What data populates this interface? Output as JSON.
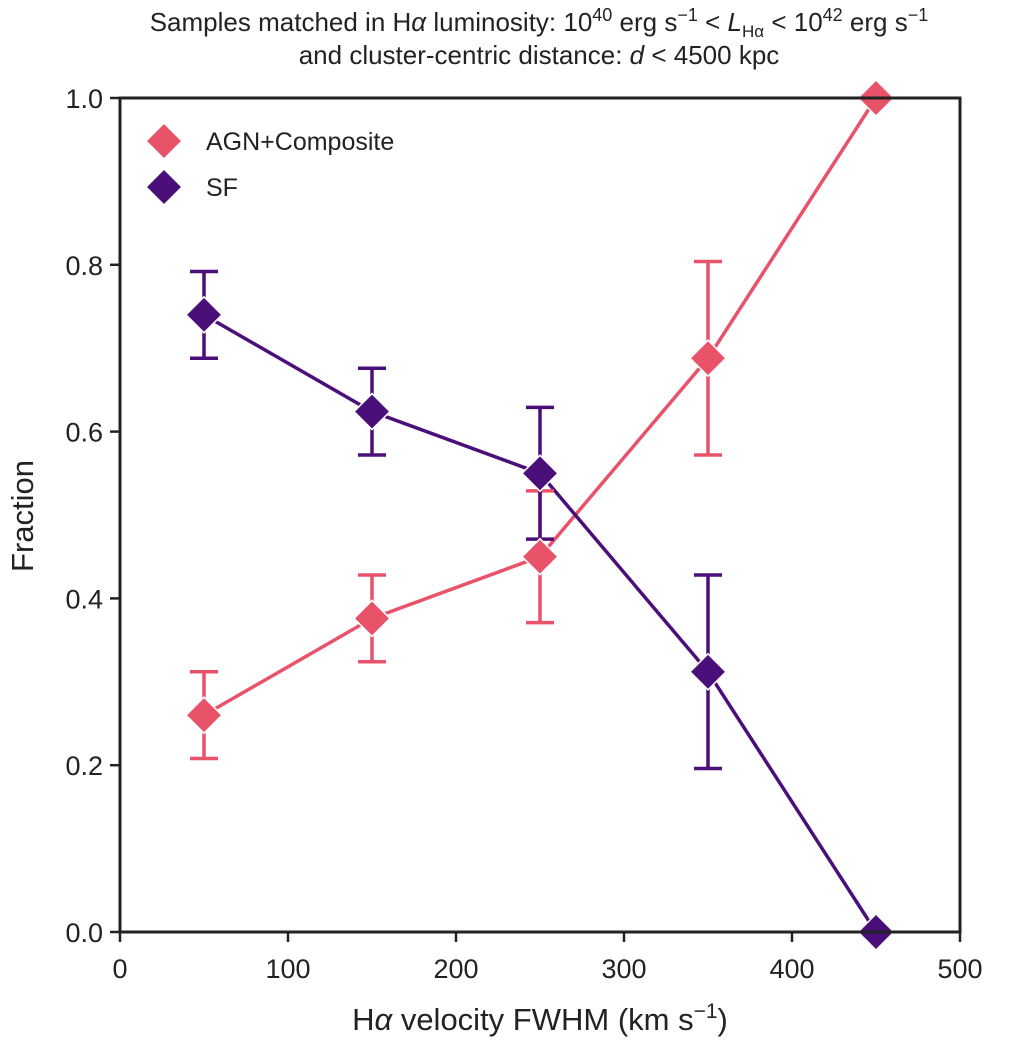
{
  "chart_data": {
    "type": "line",
    "title_lines": [
      "Samples matched in Hα luminosity: 10⁴⁰ erg s⁻¹ < L_Hα < 10⁴² erg s⁻¹",
      "and cluster-centric distance: d < 4500 kpc"
    ],
    "title_parts": {
      "line1_a": "Samples matched in H",
      "line1_alpha": "α",
      "line1_b": " luminosity: 10",
      "line1_exp1": "40",
      "line1_c": " erg s",
      "line1_exp2": "−1",
      "line1_d": " < ",
      "line1_L": "L",
      "line1_Lsub": "Hα",
      "line1_e": " < 10",
      "line1_exp3": "42",
      "line1_f": " erg s",
      "line1_exp4": "−1",
      "line2_a": "and cluster-centric distance: ",
      "line2_d": "d",
      "line2_b": " < 4500 kpc"
    },
    "xlabel": "Hα velocity FWHM (km s⁻¹)",
    "xlabel_parts": {
      "a": "H",
      "alpha": "α",
      "b": " velocity FWHM (km s",
      "exp": "−1",
      "c": ")"
    },
    "ylabel": "Fraction",
    "xlim": [
      0,
      500
    ],
    "ylim": [
      0.0,
      1.0
    ],
    "xticks": [
      0,
      100,
      200,
      300,
      400,
      500
    ],
    "xtick_labels": [
      "0",
      "100",
      "200",
      "300",
      "400",
      "500"
    ],
    "yticks": [
      0.0,
      0.2,
      0.4,
      0.6,
      0.8,
      1.0
    ],
    "ytick_labels": [
      "0.0",
      "0.2",
      "0.4",
      "0.6",
      "0.8",
      "1.0"
    ],
    "grid": false,
    "legend_position": "top-left",
    "x": [
      50,
      150,
      250,
      350,
      450
    ],
    "series": [
      {
        "name": "AGN+Composite",
        "color": "#e8536a",
        "values": [
          0.26,
          0.376,
          0.45,
          0.688,
          1.0
        ],
        "err_low": [
          0.208,
          0.324,
          0.371,
          0.572,
          null
        ],
        "err_high": [
          0.312,
          0.428,
          0.529,
          0.804,
          null
        ]
      },
      {
        "name": "SF",
        "color": "#4b0f7a",
        "values": [
          0.74,
          0.624,
          0.55,
          0.312,
          0.0
        ],
        "err_low": [
          0.688,
          0.572,
          0.471,
          0.196,
          null
        ],
        "err_high": [
          0.792,
          0.676,
          0.629,
          0.428,
          null
        ]
      }
    ]
  }
}
